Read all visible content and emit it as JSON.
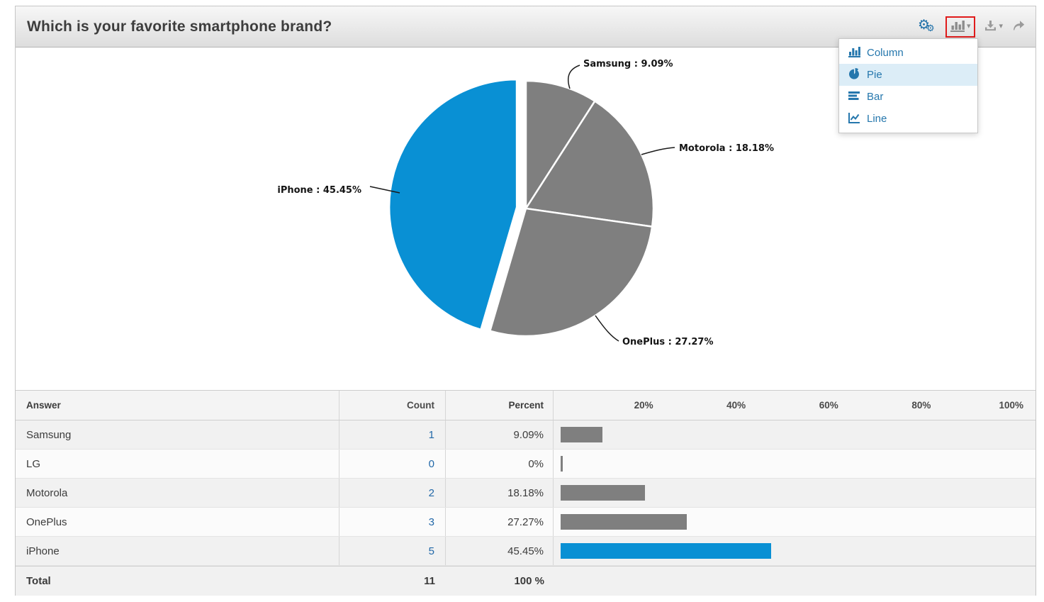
{
  "header": {
    "title": "Which is your favorite smartphone brand?",
    "toolbar": {
      "settings_icon": "gears-icon",
      "chart_type_icon": "column-chart-icon",
      "chart_type_caret": "▾",
      "download_icon": "download-icon",
      "download_caret": "▾",
      "share_icon": "share-arrow-icon"
    }
  },
  "chart_menu": {
    "items": [
      {
        "label": "Column",
        "icon": "column-chart-icon",
        "selected": false
      },
      {
        "label": "Pie",
        "icon": "pie-chart-icon",
        "selected": true
      },
      {
        "label": "Bar",
        "icon": "bar-chart-icon",
        "selected": false
      },
      {
        "label": "Line",
        "icon": "line-chart-icon",
        "selected": false
      }
    ]
  },
  "chart_data": {
    "type": "pie",
    "start_angle_deg": 0,
    "direction": "clockwise",
    "slices": [
      {
        "label": "Samsung",
        "value": 9.09,
        "color": "#7f7f7f",
        "label_text": "Samsung : 9.09%",
        "exploded": false
      },
      {
        "label": "Motorola",
        "value": 18.18,
        "color": "#7f7f7f",
        "label_text": "Motorola : 18.18%",
        "exploded": false
      },
      {
        "label": "OnePlus",
        "value": 27.27,
        "color": "#7f7f7f",
        "label_text": "OnePlus : 27.27%",
        "exploded": false
      },
      {
        "label": "iPhone",
        "value": 45.45,
        "color": "#0990d4",
        "label_text": "iPhone : 45.45%",
        "exploded": true
      }
    ]
  },
  "table": {
    "headers": {
      "answer": "Answer",
      "count": "Count",
      "percent": "Percent"
    },
    "scale_labels": [
      "20%",
      "40%",
      "60%",
      "80%",
      "100%"
    ],
    "rows": [
      {
        "answer": "Samsung",
        "count": "1",
        "percent": "9.09%",
        "bar_pct": 9.09,
        "bar_color": "#7f7f7f"
      },
      {
        "answer": "LG",
        "count": "0",
        "percent": "0%",
        "bar_pct": 0,
        "bar_color": "#7f7f7f"
      },
      {
        "answer": "Motorola",
        "count": "2",
        "percent": "18.18%",
        "bar_pct": 18.18,
        "bar_color": "#7f7f7f"
      },
      {
        "answer": "OnePlus",
        "count": "3",
        "percent": "27.27%",
        "bar_pct": 27.27,
        "bar_color": "#7f7f7f"
      },
      {
        "answer": "iPhone",
        "count": "5",
        "percent": "45.45%",
        "bar_pct": 45.45,
        "bar_color": "#0990d4"
      }
    ],
    "total": {
      "answer": "Total",
      "count": "11",
      "percent": "100 %"
    }
  },
  "colors": {
    "accent_blue": "#0990d4",
    "slice_gray": "#7f7f7f",
    "menu_blue": "#2577ad",
    "count_link_blue": "#2268a8",
    "annotation_red": "#e01b1b"
  }
}
